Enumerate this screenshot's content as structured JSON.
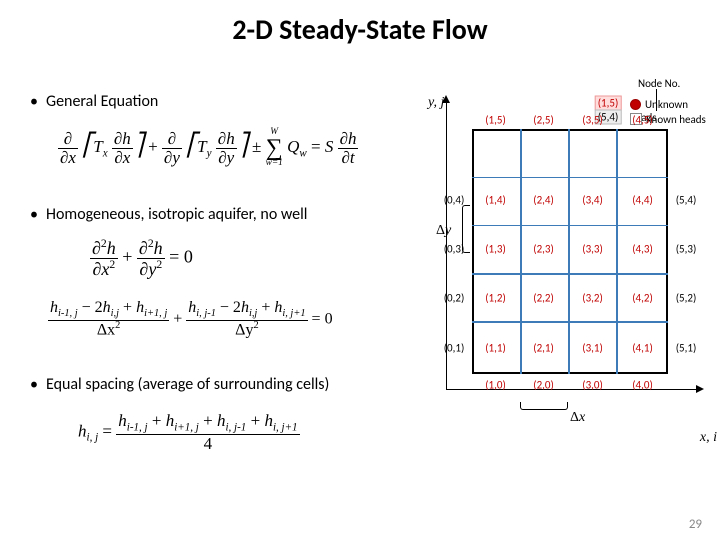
{
  "title": "2-D Steady-State Flow",
  "bullets": {
    "b1": "General Equation",
    "b2": "Homogeneous, isotropic aquifer, no well",
    "b3": "Equal spacing (average of surrounding cells)"
  },
  "legend": {
    "node_no": "Node No.",
    "unknown": "Unknown heads",
    "known": "Known heads"
  },
  "axis": {
    "y": "y, j",
    "x": "x, i",
    "dy": "Δy",
    "dx": "Δx"
  },
  "eq1": {
    "lhs1n": "∂",
    "lhs1d": "∂x",
    "Tx": "T",
    "Txs": "x",
    "dh1n": "∂h",
    "dh1d": "∂x",
    "plus": "+",
    "lhs2n": "∂",
    "lhs2d": "∂y",
    "Ty": "T",
    "Tys": "y",
    "dh2n": "∂h",
    "dh2d": "∂y",
    "pm": "±",
    "sumTop": "W",
    "sumBot": "w=1",
    "Q": "Q",
    "Qs": "w",
    "eq": "=",
    "S": "S",
    "rhsn": "∂h",
    "rhsd": "∂t"
  },
  "eq2": {
    "t1n": "∂",
    "t1n2": "2",
    "t1nh": "h",
    "t1d": "∂x",
    "t1d2": "2",
    "plus": "+",
    "t2n": "∂",
    "t2n2": "2",
    "t2nh": "h",
    "t2d": "∂y",
    "t2d2": "2",
    "eq": "=",
    "zero": "0"
  },
  "eq3a": {
    "n": "h",
    "ns1": "i-1, j",
    "minus": "− 2",
    "h2": "h",
    "ns2": "i,j",
    "plus": "+ ",
    "h3": "h",
    "ns3": "i+1, j",
    "d": "Δx",
    "d2": "2"
  },
  "eq3b": {
    "n": "h",
    "ns1": "i, j-1",
    "minus": "− 2",
    "h2": "h",
    "ns2": "i,j",
    "plus": "+ ",
    "h3": "h",
    "ns3": "i, j+1",
    "d": "Δy",
    "d2": "2",
    "eq": "=",
    "zero": "0"
  },
  "eq4": {
    "lhs": "h",
    "lhss": "i, j",
    "eq": "=",
    "n1": "h",
    "ns1": "i-1, j",
    "p1": "+ ",
    "n2": "h",
    "ns2": "i+1, j",
    "p2": "+ ",
    "n3": "h",
    "ns3": "i, j-1",
    "p3": "+ ",
    "n4": "h",
    "ns4": "i, j+1",
    "d": "4"
  },
  "grid": {
    "cols": 6,
    "rows": 6,
    "inner_cols": 4,
    "inner_rows": 5,
    "unknown_color": "#c00000",
    "known_color": "#000000",
    "line_color": "#3d7ab8",
    "nodes_top": [
      "(1,5)",
      "(2,5)",
      "(3,5)",
      "(4,5)"
    ],
    "nodes_bottom_outside": [
      "(1,0)",
      "(2,0)",
      "(3,0)",
      "(4,0)"
    ],
    "nodes_left": [
      "(0,4)",
      "(0,3)",
      "(0,2)",
      "(0,1)"
    ],
    "nodes_right": [
      "(5,4)",
      "(5,3)",
      "(5,2)",
      "(5,1)"
    ],
    "corner_tr": "(5,4)",
    "nodes_inner": [
      [
        "(1,4)",
        "(2,4)",
        "(3,4)",
        "(4,4)"
      ],
      [
        "(1,3)",
        "(2,3)",
        "(3,3)",
        "(4,3)"
      ],
      [
        "(1,2)",
        "(2,2)",
        "(3,2)",
        "(4,2)"
      ],
      [
        "(1,1)",
        "(2,1)",
        "(3,1)",
        "(4,1)"
      ]
    ],
    "example_unknown": "(1,5)",
    "example_known": "(5,4)"
  },
  "page": "29"
}
